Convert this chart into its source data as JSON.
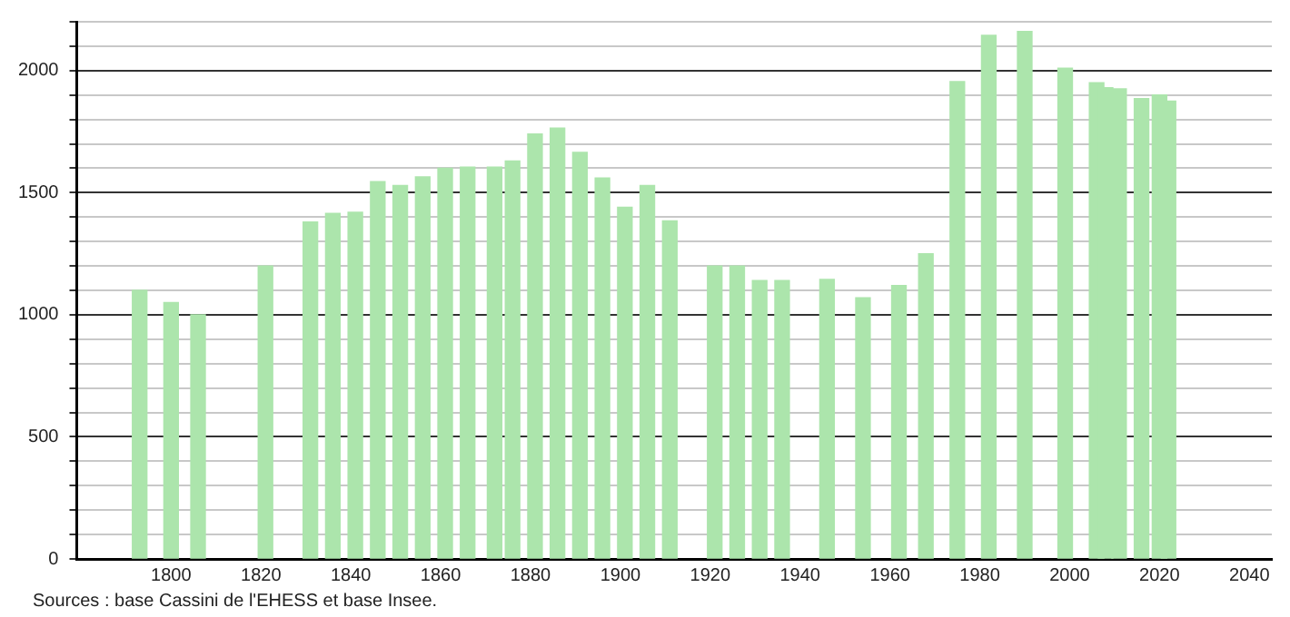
{
  "chart_data": {
    "type": "bar",
    "color": "#ace5ac",
    "x": [
      1793,
      1800,
      1806,
      1821,
      1831,
      1836,
      1841,
      1846,
      1851,
      1856,
      1861,
      1866,
      1872,
      1876,
      1881,
      1886,
      1891,
      1896,
      1901,
      1906,
      1911,
      1921,
      1926,
      1931,
      1936,
      1946,
      1954,
      1962,
      1968,
      1975,
      1982,
      1990,
      1999,
      2006,
      2008,
      2011,
      2016,
      2020,
      2022
    ],
    "values": [
      1100,
      1050,
      1000,
      1200,
      1380,
      1415,
      1420,
      1545,
      1530,
      1565,
      1600,
      1605,
      1605,
      1630,
      1740,
      1765,
      1665,
      1560,
      1440,
      1530,
      1385,
      1200,
      1200,
      1140,
      1140,
      1145,
      1070,
      1120,
      1250,
      1955,
      2145,
      2160,
      2010,
      1950,
      1930,
      1925,
      1885,
      1900,
      1875
    ],
    "xlim": [
      1779,
      2045
    ],
    "xticks": [
      1800,
      1820,
      1840,
      1860,
      1880,
      1900,
      1920,
      1940,
      1960,
      1980,
      2000,
      2020,
      2040
    ],
    "ylim": [
      0,
      2200
    ],
    "yticks": [
      0,
      {
        "value": 100,
        "label": null
      },
      {
        "value": 200,
        "label": null
      },
      {
        "value": 300,
        "label": null
      },
      {
        "value": 400,
        "label": null
      },
      500,
      {
        "value": 600,
        "label": null
      },
      {
        "value": 700,
        "label": null
      },
      {
        "value": 800,
        "label": null
      },
      {
        "value": 900,
        "label": null
      },
      1000,
      {
        "value": 1100,
        "label": null
      },
      {
        "value": 1200,
        "label": null
      },
      {
        "value": 1300,
        "label": null
      },
      {
        "value": 1400,
        "label": null
      },
      1500,
      {
        "value": 1600,
        "label": null
      },
      {
        "value": 1700,
        "label": null
      },
      {
        "value": 1800,
        "label": null
      },
      {
        "value": 1900,
        "label": null
      },
      2000,
      {
        "value": 2100,
        "label": null
      },
      {
        "value": 2200,
        "label": null
      }
    ],
    "grid": "y",
    "annotations": [
      "Sources : base Cassini de l'EHESS et base Insee."
    ]
  }
}
